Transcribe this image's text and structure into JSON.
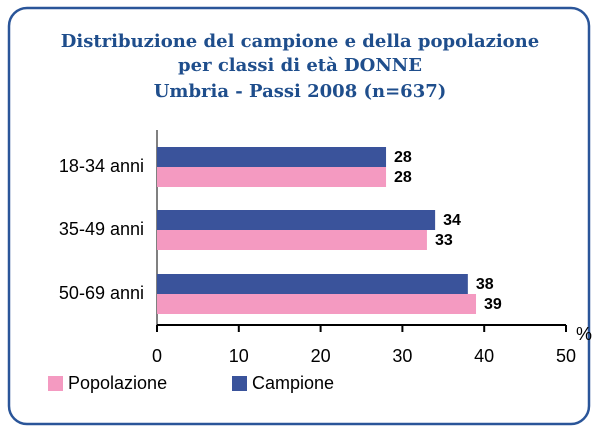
{
  "chart_data": {
    "type": "hbar",
    "title": [
      "Distribuzione del campione e della popolazione",
      "per classi di età DONNE"
    ],
    "subtitle": "Umbria - Passi 2008 (n=637)",
    "x_label": "%",
    "categories": [
      "18-34 anni",
      "35-49 anni",
      "50-69 anni"
    ],
    "series": [
      {
        "name": "Popolazione",
        "color": "#f49ac1",
        "values": [
          28,
          33,
          39
        ]
      },
      {
        "name": "Campione",
        "color": "#3a539b",
        "values": [
          28,
          34,
          38
        ]
      }
    ],
    "xlim": [
      0,
      50
    ],
    "xticks": [
      0,
      10,
      20,
      30,
      40,
      50
    ],
    "legend": "bottom"
  }
}
